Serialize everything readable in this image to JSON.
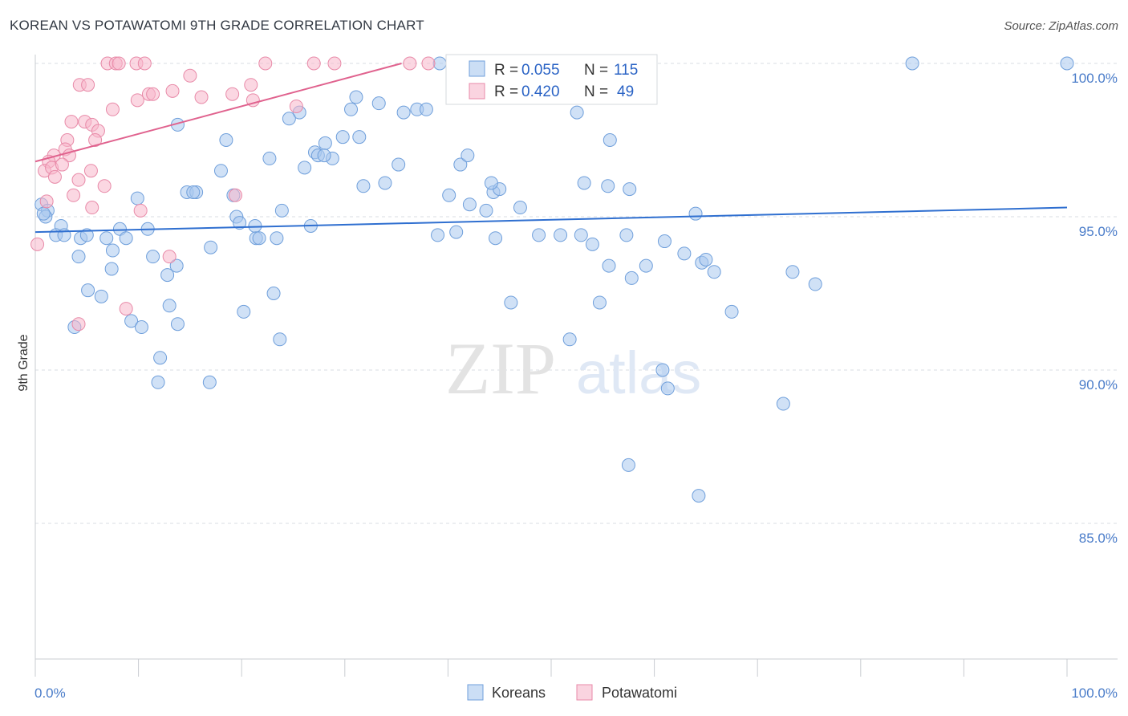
{
  "title": "KOREAN VS POTAWATOMI 9TH GRADE CORRELATION CHART",
  "source": "Source: ZipAtlas.com",
  "colors": {
    "blue_fill": "#a9c8ee",
    "blue_stroke": "#6f9fdb",
    "blue_line": "#2f6fd0",
    "pink_fill": "#f7b7cb",
    "pink_stroke": "#e88aa8",
    "pink_line": "#e0628e",
    "grid": "#d9dde3",
    "axis_text": "#4a7cc9",
    "stat_value": "#2a63c5"
  },
  "chart_data": {
    "type": "scatter",
    "xlabel": "",
    "ylabel": "9th Grade",
    "xlim": [
      0,
      100
    ],
    "ylim": [
      80,
      100.8
    ],
    "x_tick_labels": [
      "0.0%",
      "100.0%"
    ],
    "y_ticks": [
      {
        "value": 100,
        "label": "100.0%"
      },
      {
        "value": 95,
        "label": "95.0%"
      },
      {
        "value": 90,
        "label": "90.0%"
      },
      {
        "value": 85,
        "label": "85.0%"
      }
    ],
    "watermark": {
      "bold": "ZIP",
      "light": "atlas"
    },
    "legend": {
      "stats": [
        {
          "series": "Koreans",
          "r_label": "R =",
          "r_value": "0.055",
          "n_label": "N =",
          "n_value": "115"
        },
        {
          "series": "Potawatomi",
          "r_label": "R =",
          "r_value": "0.420",
          "n_label": "N =",
          "n_value": "49"
        }
      ],
      "bottom": [
        "Koreans",
        "Potawatomi"
      ]
    },
    "series": [
      {
        "name": "Koreans",
        "trend": {
          "x": [
            0,
            100
          ],
          "y": [
            94.5,
            95.3
          ]
        },
        "points": [
          [
            0.6,
            95.4
          ],
          [
            1.2,
            95.2
          ],
          [
            1.0,
            95.0
          ],
          [
            0.8,
            95.1
          ],
          [
            2.5,
            94.7
          ],
          [
            2.0,
            94.4
          ],
          [
            2.8,
            94.4
          ],
          [
            4.4,
            94.3
          ],
          [
            5.0,
            94.4
          ],
          [
            6.9,
            94.3
          ],
          [
            8.2,
            94.6
          ],
          [
            10.9,
            94.6
          ],
          [
            8.8,
            94.3
          ],
          [
            4.2,
            93.7
          ],
          [
            7.5,
            93.9
          ],
          [
            11.4,
            93.7
          ],
          [
            12.8,
            93.1
          ],
          [
            13.7,
            93.4
          ],
          [
            17.0,
            94.0
          ],
          [
            7.4,
            93.3
          ],
          [
            5.1,
            92.6
          ],
          [
            6.4,
            92.4
          ],
          [
            9.3,
            91.6
          ],
          [
            10.3,
            91.4
          ],
          [
            13.0,
            92.1
          ],
          [
            13.8,
            91.5
          ],
          [
            3.8,
            91.4
          ],
          [
            12.1,
            90.4
          ],
          [
            11.9,
            89.6
          ],
          [
            16.9,
            89.6
          ],
          [
            9.9,
            95.6
          ],
          [
            14.7,
            95.8
          ],
          [
            15.6,
            95.8
          ],
          [
            15.3,
            95.8
          ],
          [
            19.2,
            95.7
          ],
          [
            19.5,
            95.0
          ],
          [
            19.8,
            94.8
          ],
          [
            21.3,
            94.7
          ],
          [
            21.4,
            94.3
          ],
          [
            21.7,
            94.3
          ],
          [
            23.4,
            94.3
          ],
          [
            23.9,
            95.2
          ],
          [
            26.7,
            94.7
          ],
          [
            23.1,
            92.5
          ],
          [
            20.2,
            91.9
          ],
          [
            23.7,
            91.0
          ],
          [
            13.8,
            98.0
          ],
          [
            18.0,
            96.5
          ],
          [
            18.5,
            97.5
          ],
          [
            25.6,
            98.4
          ],
          [
            24.6,
            98.2
          ],
          [
            22.7,
            96.9
          ],
          [
            27.1,
            97.1
          ],
          [
            27.4,
            97.0
          ],
          [
            28.1,
            97.4
          ],
          [
            28.8,
            96.9
          ],
          [
            26.1,
            96.6
          ],
          [
            28.0,
            97.0
          ],
          [
            29.8,
            97.6
          ],
          [
            31.4,
            97.6
          ],
          [
            31.8,
            96.0
          ],
          [
            33.9,
            96.1
          ],
          [
            35.2,
            96.7
          ],
          [
            30.6,
            98.5
          ],
          [
            31.1,
            98.9
          ],
          [
            33.3,
            98.7
          ],
          [
            35.7,
            98.4
          ],
          [
            37.0,
            98.5
          ],
          [
            37.9,
            98.5
          ],
          [
            41.9,
            98.9
          ],
          [
            41.2,
            96.7
          ],
          [
            41.9,
            97.0
          ],
          [
            40.1,
            95.7
          ],
          [
            43.7,
            95.2
          ],
          [
            42.1,
            95.4
          ],
          [
            44.4,
            95.8
          ],
          [
            45.0,
            95.9
          ],
          [
            47.0,
            95.3
          ],
          [
            44.2,
            96.1
          ],
          [
            39.0,
            94.4
          ],
          [
            40.8,
            94.5
          ],
          [
            44.6,
            94.3
          ],
          [
            46.1,
            92.2
          ],
          [
            48.8,
            94.4
          ],
          [
            50.9,
            94.4
          ],
          [
            52.9,
            94.4
          ],
          [
            54.0,
            94.1
          ],
          [
            55.6,
            93.4
          ],
          [
            54.7,
            92.2
          ],
          [
            53.2,
            96.1
          ],
          [
            55.5,
            96.0
          ],
          [
            57.6,
            95.9
          ],
          [
            52.5,
            98.4
          ],
          [
            55.7,
            97.5
          ],
          [
            57.3,
            94.4
          ],
          [
            59.2,
            93.4
          ],
          [
            61.0,
            94.2
          ],
          [
            62.9,
            93.8
          ],
          [
            64.6,
            93.5
          ],
          [
            57.8,
            93.0
          ],
          [
            65.0,
            93.6
          ],
          [
            64.0,
            95.1
          ],
          [
            65.8,
            93.2
          ],
          [
            51.8,
            91.0
          ],
          [
            67.5,
            91.9
          ],
          [
            73.4,
            93.2
          ],
          [
            75.6,
            92.8
          ],
          [
            72.5,
            88.9
          ],
          [
            57.5,
            86.9
          ],
          [
            64.3,
            85.9
          ],
          [
            60.8,
            90.0
          ],
          [
            61.3,
            89.4
          ],
          [
            85.0,
            100.0
          ],
          [
            100.0,
            100.0
          ],
          [
            39.2,
            100.0
          ]
        ]
      },
      {
        "name": "Potawatomi",
        "trend": {
          "x": [
            0,
            35.5
          ],
          "y": [
            96.8,
            100.0
          ]
        },
        "points": [
          [
            7.0,
            100.0
          ],
          [
            7.8,
            100.0
          ],
          [
            8.1,
            100.0
          ],
          [
            9.8,
            100.0
          ],
          [
            27.0,
            100.0
          ],
          [
            36.3,
            100.0
          ],
          [
            38.1,
            100.0
          ],
          [
            4.3,
            99.3
          ],
          [
            5.1,
            99.3
          ],
          [
            7.5,
            98.5
          ],
          [
            11.0,
            99.0
          ],
          [
            11.4,
            99.0
          ],
          [
            13.3,
            99.1
          ],
          [
            15.0,
            99.6
          ],
          [
            16.1,
            98.9
          ],
          [
            19.1,
            99.0
          ],
          [
            20.9,
            99.3
          ],
          [
            21.1,
            98.8
          ],
          [
            3.5,
            98.1
          ],
          [
            4.8,
            98.1
          ],
          [
            5.5,
            98.0
          ],
          [
            6.1,
            97.8
          ],
          [
            3.1,
            97.5
          ],
          [
            5.8,
            97.5
          ],
          [
            1.8,
            97.0
          ],
          [
            2.9,
            97.2
          ],
          [
            1.3,
            96.8
          ],
          [
            0.9,
            96.5
          ],
          [
            3.3,
            97.0
          ],
          [
            1.6,
            96.6
          ],
          [
            2.6,
            96.7
          ],
          [
            5.4,
            96.5
          ],
          [
            4.2,
            96.2
          ],
          [
            1.9,
            96.3
          ],
          [
            1.1,
            95.5
          ],
          [
            3.7,
            95.7
          ],
          [
            5.5,
            95.3
          ],
          [
            10.2,
            95.2
          ],
          [
            0.2,
            94.1
          ],
          [
            13.0,
            93.7
          ],
          [
            8.8,
            92.0
          ],
          [
            4.2,
            91.5
          ],
          [
            19.4,
            95.7
          ],
          [
            29.0,
            100.0
          ],
          [
            22.3,
            100.0
          ],
          [
            25.3,
            98.6
          ],
          [
            10.6,
            100.0
          ],
          [
            9.9,
            98.8
          ],
          [
            6.7,
            96.0
          ]
        ]
      }
    ]
  }
}
